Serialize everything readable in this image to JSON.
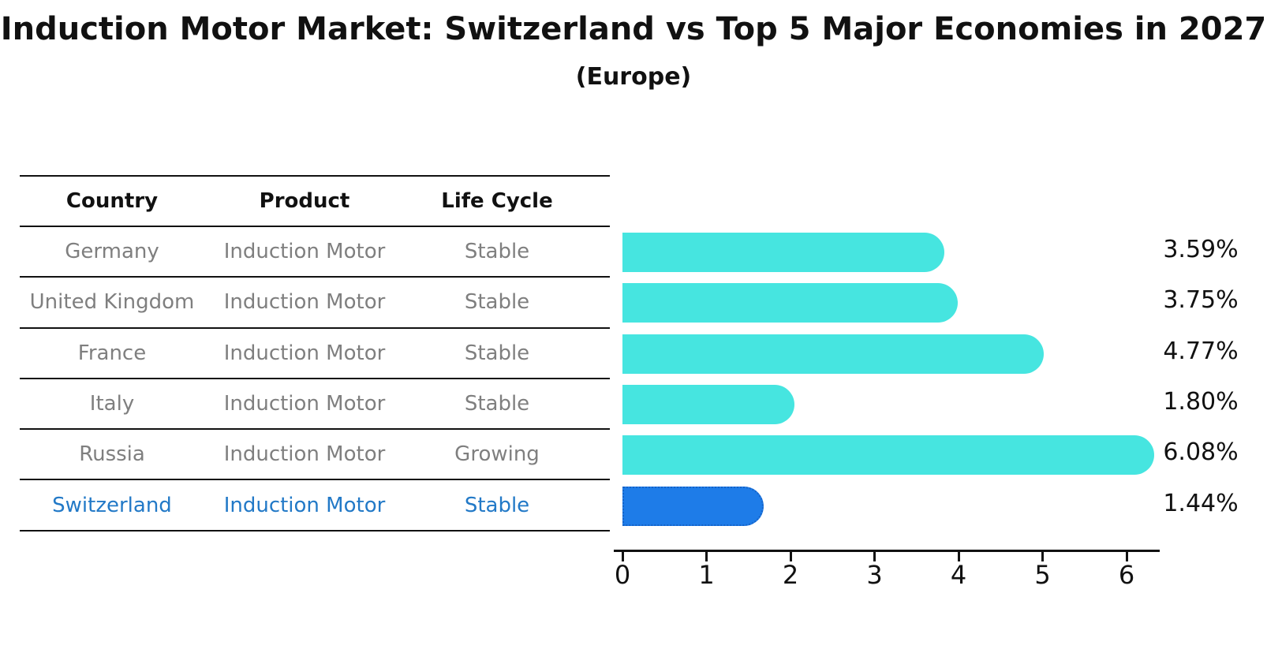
{
  "title": "Induction Motor Market: Switzerland vs Top 5 Major Economies in 2027",
  "subtitle": "(Europe)",
  "table": {
    "headers": [
      "Country",
      "Product",
      "Life Cycle"
    ],
    "rows": [
      {
        "country": "Germany",
        "product": "Induction Motor",
        "life_cycle": "Stable",
        "highlight": false
      },
      {
        "country": "United Kingdom",
        "product": "Induction Motor",
        "life_cycle": "Stable",
        "highlight": false
      },
      {
        "country": "France",
        "product": "Induction Motor",
        "life_cycle": "Stable",
        "highlight": false
      },
      {
        "country": "Italy",
        "product": "Induction Motor",
        "life_cycle": "Stable",
        "highlight": false
      },
      {
        "country": "Russia",
        "product": "Induction Motor",
        "life_cycle": "Growing",
        "highlight": false
      },
      {
        "country": "Switzerland",
        "product": "Induction Motor",
        "life_cycle": "Stable",
        "highlight": true
      }
    ]
  },
  "chart_data": {
    "type": "bar",
    "orientation": "horizontal",
    "title": "Induction Motor Market: Switzerland vs Top 5 Major Economies in 2027",
    "subtitle": "(Europe)",
    "categories": [
      "Germany",
      "United Kingdom",
      "France",
      "Italy",
      "Russia",
      "Switzerland"
    ],
    "values": [
      3.59,
      3.75,
      4.77,
      1.8,
      6.08,
      1.44
    ],
    "value_labels": [
      "3.59%",
      "3.75%",
      "4.77%",
      "1.80%",
      "6.08%",
      "1.44%"
    ],
    "unit": "percent",
    "x_ticks": [
      0,
      1,
      2,
      3,
      4,
      5,
      6
    ],
    "xlim": [
      0,
      6.4
    ],
    "grid": false,
    "legend": "none",
    "highlight_category": "Switzerland",
    "colors": {
      "bar": "#46e5e0",
      "highlight_bar": "#1e7ce8",
      "highlight_border": "#1563c8",
      "highlight_text": "#2279c7",
      "row_text": "#7f7f7f",
      "header_text": "#111111",
      "axis": "#111111"
    }
  }
}
